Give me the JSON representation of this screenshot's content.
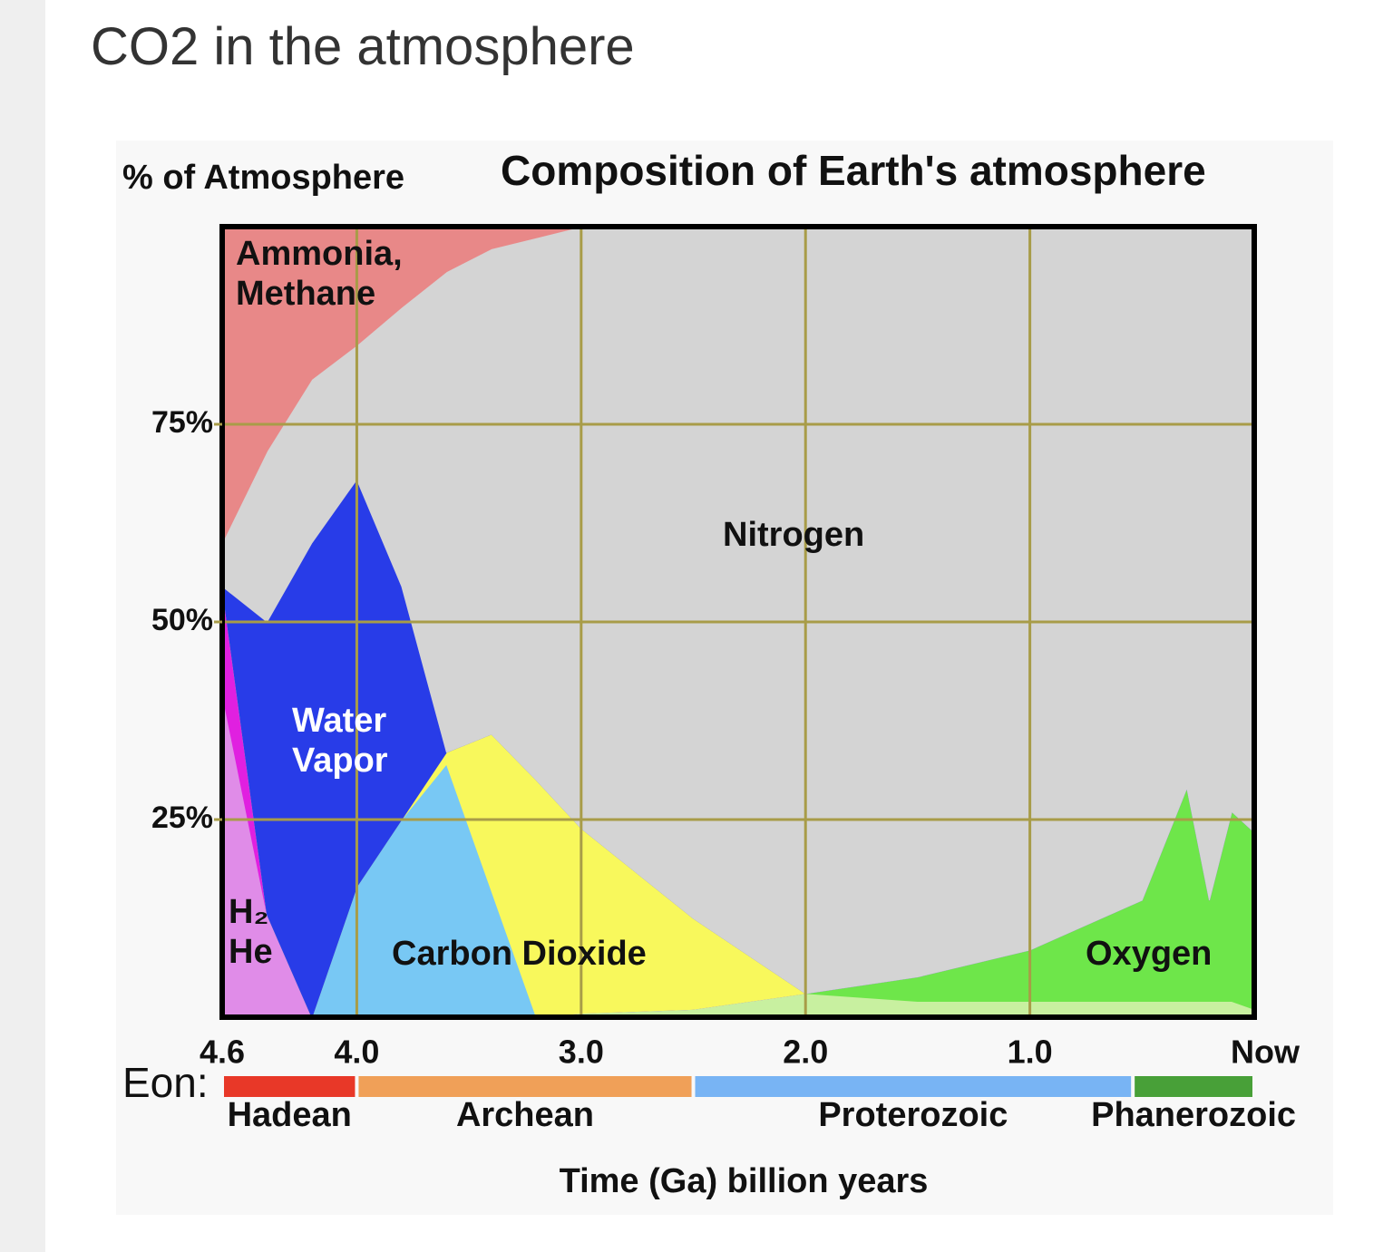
{
  "heading": "CO2 in the atmosphere",
  "chart_data": {
    "type": "stacked-area",
    "title": "Composition of Earth's atmosphere",
    "y_label": "% of Atmosphere",
    "x_label": "Time (Ga) billion years",
    "x": [
      4.6,
      4.4,
      4.2,
      4.0,
      3.8,
      3.6,
      3.4,
      3.2,
      3.0,
      2.5,
      2.0,
      1.5,
      1.0,
      0.5,
      0.3,
      0.2,
      0.1,
      0
    ],
    "xlim": [
      4.6,
      0
    ],
    "xticks": [
      4.6,
      {
        "value": 4,
        "label": "4.0"
      },
      {
        "value": 3,
        "label": "3.0"
      },
      {
        "value": 2,
        "label": "2.0"
      },
      {
        "value": 1,
        "label": "1.0"
      },
      {
        "value": 0,
        "label": "Now"
      }
    ],
    "ylim": [
      0,
      100
    ],
    "yticks": [
      {
        "value": 25,
        "label": "25%"
      },
      {
        "value": 50,
        "label": "50%"
      },
      {
        "value": 75,
        "label": "75%"
      }
    ],
    "grid": true,
    "grid_color": "#a89c48",
    "series": [
      {
        "color": "#c8f0a0",
        "values": [
          0,
          0,
          0,
          0,
          0,
          0,
          0,
          0,
          0.5,
          1,
          3,
          2,
          2,
          2,
          2,
          2,
          2,
          1
        ]
      },
      {
        "name": "Oxygen",
        "color": "#6ee64a",
        "values": [
          0,
          0,
          0,
          0,
          0,
          0,
          0,
          0,
          0,
          0,
          0,
          3.1,
          6.5,
          12.8,
          27,
          12.8,
          24,
          22.4
        ]
      },
      {
        "name": "H₂ He",
        "color": "#e08ce8",
        "values": [
          41,
          13,
          0,
          0,
          0,
          0,
          0,
          0,
          0,
          0,
          0,
          0,
          0,
          0,
          0,
          0,
          0,
          0
        ]
      },
      {
        "color": "#e020e0",
        "values": [
          13.5,
          0,
          0,
          0,
          0,
          0,
          0,
          0,
          0,
          0,
          0,
          0,
          0,
          0,
          0,
          0,
          0,
          0
        ]
      },
      {
        "name": "Carbon Dioxide",
        "color": "#78c8f4",
        "values": [
          0,
          0,
          0,
          16.5,
          25,
          32,
          16,
          0,
          0,
          0,
          0,
          0,
          0,
          0,
          0,
          0,
          0,
          0
        ]
      },
      {
        "color": "#f8f85c",
        "values": [
          0,
          0,
          0,
          0,
          0,
          1.5,
          19.8,
          30,
          23.4,
          11.5,
          0,
          0,
          0,
          0,
          0,
          0,
          0,
          0
        ]
      },
      {
        "name": "Water Vapor",
        "color": "#283ce8",
        "values": [
          0,
          37,
          60,
          51.5,
          29.5,
          0,
          0,
          0,
          0,
          0,
          0,
          0,
          0,
          0,
          0,
          0,
          0,
          0
        ]
      },
      {
        "name": "Nitrogen",
        "color": "#d4d4d4",
        "values": [
          5.5,
          21.6,
          20.7,
          17,
          35.3,
          60.8,
          61.4,
          68.6,
          76.1,
          87.5,
          97,
          94.9,
          91.5,
          85.2,
          71,
          85.2,
          74,
          76.6
        ]
      },
      {
        "name": "Ammonia, Methane",
        "color": "#e88888",
        "values": [
          40,
          28.4,
          19.3,
          15,
          10.2,
          5.7,
          2.8,
          1.4,
          0,
          0,
          0,
          0,
          0,
          0,
          0,
          0,
          0,
          0
        ]
      }
    ],
    "eons": {
      "label": "Eon:",
      "items": [
        {
          "name": "Hadean",
          "start": 4.6,
          "end": 4.0,
          "color": "#e83828"
        },
        {
          "name": "Archean",
          "start": 4.0,
          "end": 2.5,
          "color": "#f0a058"
        },
        {
          "name": "Proterozoic",
          "start": 2.5,
          "end": 0.541,
          "color": "#78b4f4"
        },
        {
          "name": "Phanerozoic",
          "start": 0.541,
          "end": 0,
          "color": "#48a038"
        }
      ]
    }
  }
}
